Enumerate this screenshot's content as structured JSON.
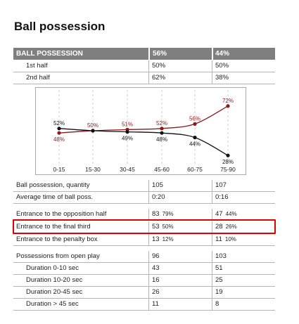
{
  "title": "Ball possession",
  "header": {
    "label": "BALL POSSESSION",
    "team1": "56%",
    "team2": "44%"
  },
  "halves": [
    {
      "label": "1st half",
      "v1": "50%",
      "v2": "50%"
    },
    {
      "label": "2nd half",
      "v1": "62%",
      "v2": "38%"
    }
  ],
  "chart_data": {
    "type": "line",
    "categories": [
      "0-15",
      "15-30",
      "30-45",
      "45-60",
      "60-75",
      "75-90"
    ],
    "series": [
      {
        "values": [
          48,
          50,
          51,
          52,
          56,
          72
        ],
        "labels": [
          "48%",
          "50%",
          "51%",
          "52%",
          "56%",
          "72%"
        ],
        "color": "#8b1a1a"
      },
      {
        "values": [
          52,
          50,
          49,
          48,
          44,
          28
        ],
        "labels": [
          "52%",
          "",
          "49%",
          "48%",
          "44%",
          "28%"
        ],
        "color": "#111111"
      }
    ],
    "ylim": [
      20,
      80
    ],
    "grid": "vertical dashed"
  },
  "stats": [
    {
      "label": "Ball possession, quantity",
      "v1": "105",
      "v2": "107"
    },
    {
      "label": "Average time of ball poss.",
      "v1": "0:20",
      "v2": "0:16"
    }
  ],
  "entrances": [
    {
      "label": "Entrance to the opposition half",
      "v1": "83",
      "p1": "79%",
      "v2": "47",
      "p2": "44%"
    },
    {
      "label": "Entrance to the final third",
      "v1": "53",
      "p1": "50%",
      "v2": "28",
      "p2": "26%"
    },
    {
      "label": "Entrance to the penalty box",
      "v1": "13",
      "p1": "12%",
      "v2": "11",
      "p2": "10%"
    }
  ],
  "open_play": [
    {
      "label": "Possessions from open play",
      "v1": "96",
      "v2": "103"
    },
    {
      "label": "Duration  0-10 sec",
      "v1": "43",
      "v2": "51"
    },
    {
      "label": "Duration  10-20 sec",
      "v1": "16",
      "v2": "25"
    },
    {
      "label": "Duration  20-45 sec",
      "v1": "26",
      "v2": "19"
    },
    {
      "label": "Duration  > 45 sec",
      "v1": "11",
      "v2": "8"
    }
  ],
  "colors": {
    "header_bg": "#7f7f7f",
    "highlight": "#e00000",
    "team1_line": "#8b1a1a",
    "team2_line": "#111111"
  }
}
